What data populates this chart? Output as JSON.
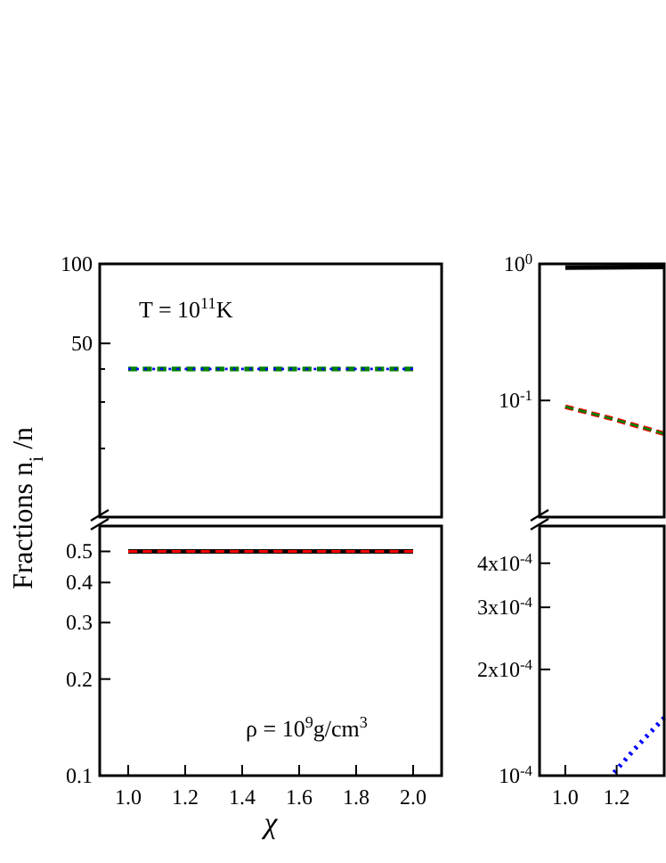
{
  "chart_data": [
    {
      "type": "line",
      "log": true,
      "xlim": [
        0.9,
        2.1
      ],
      "ylim": [
        11,
        100
      ],
      "yticks": [
        100,
        50,
        {
          "value": 40,
          "label": null
        },
        {
          "value": 30,
          "label": null
        },
        {
          "value": 20,
          "label": null
        }
      ],
      "tick_labels": "y",
      "annotations": [
        "T = 10$^{11}$K"
      ],
      "series": [
        {
          "color": "#008000",
          "line_style": "dashed",
          "x": [
            1,
            2
          ],
          "values": [
            40,
            40
          ]
        },
        {
          "color": "#0000ff",
          "line_style": "dotted",
          "x": [
            1,
            2
          ],
          "values": [
            40,
            40
          ]
        }
      ]
    },
    {
      "type": "line",
      "log": true,
      "xlim": [
        0.9,
        2.1
      ],
      "ylim": [
        0.1,
        0.6
      ],
      "ylabel": "Fractions n$_{i}$ /n",
      "xlabel": "χ",
      "xticks": [
        {
          "value": 1,
          "label": "1.0"
        },
        {
          "value": 1.2,
          "label": "1.2"
        },
        {
          "value": 1.4,
          "label": "1.4"
        },
        {
          "value": 1.6,
          "label": "1.6"
        },
        {
          "value": 1.8,
          "label": "1.8"
        },
        {
          "value": 2,
          "label": "2.0"
        }
      ],
      "yticks": [
        0.1,
        0.2,
        0.3,
        0.4,
        0.5
      ],
      "annotations": [
        "ρ = 10$^{9}$g/cm$^{3}$"
      ],
      "series": [
        {
          "color": "#000000",
          "line_style": "solid",
          "x": [
            1,
            2
          ],
          "values": [
            0.5,
            0.5
          ]
        },
        {
          "color": "#ff0000",
          "line_style": "dashed",
          "x": [
            1,
            2
          ],
          "values": [
            0.5,
            0.5
          ]
        }
      ]
    },
    {
      "type": "line",
      "log": true,
      "xlim": [
        0.9,
        1.385
      ],
      "ylim": [
        0.014,
        1
      ],
      "yticks": [
        {
          "value": 1,
          "label": "10$^{0}$"
        },
        {
          "value": 0.1,
          "label": "10$^{-1}$"
        }
      ],
      "tick_labels": "y",
      "series": [
        {
          "color": "#000000",
          "line_style": "solid",
          "x": [
            1,
            1.385
          ],
          "values": [
            0.94,
            0.95
          ]
        },
        {
          "color": "#ff0000",
          "line_style": "dashed",
          "x": [
            1,
            1.2,
            1.385
          ],
          "values": [
            0.09,
            0.072,
            0.057
          ]
        },
        {
          "color": "#008000",
          "line_style": "dashed",
          "x": [
            1,
            1.2,
            1.385
          ],
          "values": [
            0.09,
            0.072,
            0.057
          ]
        }
      ]
    },
    {
      "type": "line",
      "log": true,
      "xlim": [
        0.9,
        1.385
      ],
      "ylim": [
        0.0001,
        0.00051
      ],
      "xticks": [
        {
          "value": 1,
          "label": "1.0"
        },
        {
          "value": 1.2,
          "label": "1.2"
        }
      ],
      "yticks": [
        {
          "value": 0.0001,
          "label": "10$^{-4}$"
        },
        {
          "value": 0.0002,
          "label": "2x10$^{-4}$"
        },
        {
          "value": 0.0003,
          "label": "3x10$^{-4}$"
        },
        {
          "value": 0.0004,
          "label": "4x10$^{-4}$"
        }
      ],
      "series": [
        {
          "color": "#0000ff",
          "line_style": "dotted",
          "x": [
            1.19,
            1.27,
            1.385
          ],
          "values": [
            0.000102,
            0.000119,
            0.000146
          ]
        }
      ]
    }
  ]
}
